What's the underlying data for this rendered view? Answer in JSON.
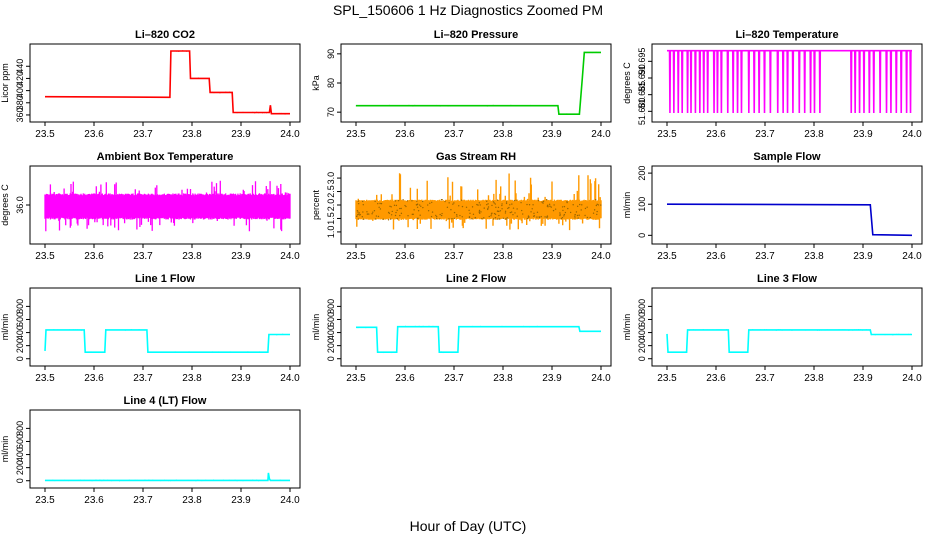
{
  "page": {
    "title": "SPL_150606  1 Hz Diagnostics Zoomed PM",
    "xlabel": "Hour of Day (UTC)"
  },
  "chart_data": [
    {
      "id": "co2",
      "type": "line",
      "title": "Li–820 CO2",
      "ylabel": "Licor ppm",
      "color": "#ff0000",
      "xlim": [
        23.5,
        24.0
      ],
      "ylim": [
        355,
        470
      ],
      "xticks": [
        "23.5",
        "23.6",
        "23.7",
        "23.8",
        "23.9",
        "24.0"
      ],
      "yticks": [
        360,
        380,
        400,
        420,
        440
      ],
      "x": [
        23.5,
        23.755,
        23.757,
        23.795,
        23.797,
        23.835,
        23.837,
        23.882,
        23.884,
        23.958,
        23.96,
        23.962,
        24.0
      ],
      "y": [
        390,
        389,
        465,
        465,
        420,
        420,
        397,
        397,
        364,
        364,
        376,
        362,
        362
      ]
    },
    {
      "id": "pressure",
      "type": "line",
      "title": "Li–820 Pressure",
      "ylabel": "kPa",
      "color": "#00cc00",
      "xlim": [
        23.5,
        24.0
      ],
      "ylim": [
        68,
        92
      ],
      "xticks": [
        "23.5",
        "23.6",
        "23.7",
        "23.8",
        "23.9",
        "24.0"
      ],
      "yticks": [
        70,
        80,
        90
      ],
      "x": [
        23.5,
        23.912,
        23.914,
        23.956,
        23.962,
        23.966,
        24.0
      ],
      "y": [
        72.2,
        72.2,
        69.3,
        69.3,
        82,
        90.5,
        90.5
      ]
    },
    {
      "id": "temperature",
      "type": "line",
      "title": "Li–820 Temperature",
      "ylabel": "degrees C",
      "color": "#ff00ff",
      "xlim": [
        23.5,
        24.0
      ],
      "ylim": [
        51.678,
        51.699
      ],
      "xticks": [
        "23.5",
        "23.6",
        "23.7",
        "23.8",
        "23.9",
        "24.0"
      ],
      "yticks": [
        "51.680",
        "51.685",
        "51.690",
        "51.695"
      ],
      "baseline": 51.6982,
      "low": 51.6795,
      "dip_times": [
        23.506,
        23.514,
        23.523,
        23.531,
        23.542,
        23.549,
        23.558,
        23.567,
        23.575,
        23.583,
        23.596,
        23.603,
        23.611,
        23.624,
        23.635,
        23.644,
        23.652,
        23.667,
        23.678,
        23.688,
        23.699,
        23.711,
        23.726,
        23.737,
        23.746,
        23.757,
        23.77,
        23.781,
        23.793,
        23.801,
        23.812,
        23.876,
        23.884,
        23.893,
        23.902,
        23.913,
        23.922,
        23.935,
        23.948,
        23.957,
        23.968,
        23.978,
        23.989,
        23.997
      ]
    },
    {
      "id": "ambient",
      "type": "line",
      "title": "Ambient Box Temperature",
      "ylabel": "degrees C",
      "color": "#ff00ff",
      "xlim": [
        23.5,
        24.0
      ],
      "ylim": [
        35.4,
        36.6
      ],
      "xticks": [
        "23.5",
        "23.6",
        "23.7",
        "23.8",
        "23.9",
        "24.0"
      ],
      "yticks": [
        "36.0"
      ],
      "band": [
        35.75,
        36.2
      ],
      "spike_range": [
        35.55,
        36.42
      ]
    },
    {
      "id": "rh",
      "type": "scatter",
      "title": "Gas Stream RH",
      "ylabel": "percent",
      "color": "#ff9900",
      "color2": "#996600",
      "xlim": [
        23.5,
        24.0
      ],
      "ylim": [
        0.7,
        3.3
      ],
      "xticks": [
        "23.5",
        "23.6",
        "23.7",
        "23.8",
        "23.9",
        "24.0"
      ],
      "yticks": [
        "1.0",
        "1.5",
        "2.0",
        "2.5",
        "3.0"
      ],
      "band": [
        1.45,
        2.2
      ],
      "spike_range": [
        1.05,
        3.2
      ]
    },
    {
      "id": "sample",
      "type": "line",
      "title": "Sample Flow",
      "ylabel": "ml/min",
      "color": "#0000cc",
      "xlim": [
        23.5,
        24.0
      ],
      "ylim": [
        -15,
        210
      ],
      "xticks": [
        "23.5",
        "23.6",
        "23.7",
        "23.8",
        "23.9",
        "24.0"
      ],
      "yticks": [
        0,
        100,
        200
      ],
      "x": [
        23.5,
        23.915,
        23.92,
        24.0
      ],
      "y": [
        100,
        98,
        2,
        0
      ]
    },
    {
      "id": "line1",
      "type": "line",
      "title": "Line 1 Flow",
      "ylabel": "ml/min",
      "color": "#00ffff",
      "xlim": [
        23.5,
        24.0
      ],
      "ylim": [
        -50,
        1020
      ],
      "xticks": [
        "23.5",
        "23.6",
        "23.7",
        "23.8",
        "23.9",
        "24.0"
      ],
      "yticks": [
        0,
        200,
        400,
        600,
        800
      ],
      "x": [
        23.5,
        23.502,
        23.58,
        23.582,
        23.622,
        23.624,
        23.708,
        23.71,
        23.955,
        23.957,
        24.0
      ],
      "y": [
        120,
        440,
        440,
        100,
        100,
        440,
        440,
        100,
        100,
        370,
        370
      ]
    },
    {
      "id": "line2",
      "type": "line",
      "title": "Line 2 Flow",
      "ylabel": "ml/min",
      "color": "#00ffff",
      "xlim": [
        23.5,
        24.0
      ],
      "ylim": [
        -50,
        1020
      ],
      "xticks": [
        "23.5",
        "23.6",
        "23.7",
        "23.8",
        "23.9",
        "24.0"
      ],
      "yticks": [
        0,
        200,
        400,
        600,
        800
      ],
      "x": [
        23.5,
        23.542,
        23.544,
        23.583,
        23.585,
        23.668,
        23.67,
        23.708,
        23.71,
        23.955,
        23.957,
        24.0
      ],
      "y": [
        480,
        480,
        100,
        100,
        490,
        490,
        100,
        100,
        490,
        490,
        420,
        420
      ]
    },
    {
      "id": "line3",
      "type": "line",
      "title": "Line 3 Flow",
      "ylabel": "ml/min",
      "color": "#00ffff",
      "xlim": [
        23.5,
        24.0
      ],
      "ylim": [
        -50,
        1020
      ],
      "xticks": [
        "23.5",
        "23.6",
        "23.7",
        "23.8",
        "23.9",
        "24.0"
      ],
      "yticks": [
        0,
        200,
        400,
        600,
        800
      ],
      "x": [
        23.5,
        23.502,
        23.54,
        23.542,
        23.625,
        23.627,
        23.665,
        23.667,
        23.915,
        23.917,
        24.0
      ],
      "y": [
        380,
        100,
        100,
        440,
        440,
        100,
        100,
        440,
        440,
        370,
        370
      ]
    },
    {
      "id": "line4",
      "type": "line",
      "title": "Line 4 (LT) Flow",
      "ylabel": "ml/min",
      "color": "#00ffff",
      "xlim": [
        23.5,
        24.0
      ],
      "ylim": [
        -50,
        1020
      ],
      "xticks": [
        "23.5",
        "23.6",
        "23.7",
        "23.8",
        "23.9",
        "24.0"
      ],
      "yticks": [
        0,
        200,
        400,
        600,
        800
      ],
      "x": [
        23.5,
        23.955,
        23.956,
        23.958,
        23.96,
        24.0
      ],
      "y": [
        5,
        5,
        120,
        30,
        5,
        5
      ]
    }
  ]
}
